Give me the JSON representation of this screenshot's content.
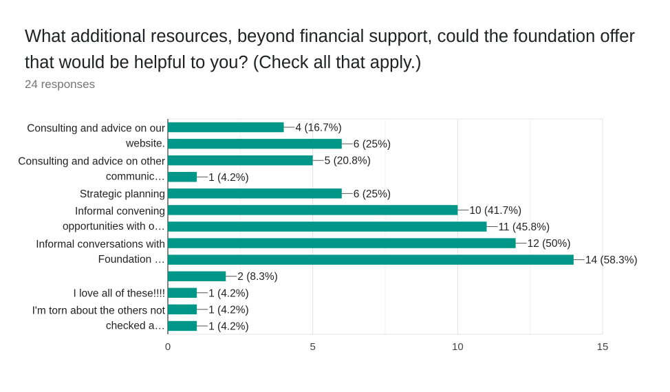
{
  "form": {
    "question": "What additional resources, beyond financial support, could the foundation offer that would be helpful to you? (Check all that apply.)",
    "responses": "24 responses"
  },
  "chart_data": {
    "type": "bar",
    "orientation": "horizontal",
    "title": "What additional resources, beyond financial support, could the foundation offer that would be helpful to you? (Check all that apply.)",
    "subtitle": "24 responses",
    "bars": [
      {
        "value": 4,
        "label": "4 (16.7%)"
      },
      {
        "value": 6,
        "label": "6 (25%)"
      },
      {
        "value": 5,
        "label": "5 (20.8%)"
      },
      {
        "value": 1,
        "label": "1 (4.2%)"
      },
      {
        "value": 6,
        "label": "6 (25%)"
      },
      {
        "value": 10,
        "label": "10 (41.7%)"
      },
      {
        "value": 11,
        "label": "11 (45.8%)"
      },
      {
        "value": 12,
        "label": "12 (50%)"
      },
      {
        "value": 14,
        "label": "14 (58.3%)"
      },
      {
        "value": 2,
        "label": "2 (8.3%)"
      },
      {
        "value": 1,
        "label": "1 (4.2%)"
      },
      {
        "value": 1,
        "label": "1 (4.2%)"
      },
      {
        "value": 1,
        "label": "1 (4.2%)"
      }
    ],
    "category_labels": [
      {
        "bar_index": 0.5,
        "lines": [
          "Consulting and advice on our",
          "website."
        ]
      },
      {
        "bar_index": 2.5,
        "lines": [
          "Consulting and advice on other",
          "communic…"
        ]
      },
      {
        "bar_index": 4,
        "lines": [
          "Strategic planning"
        ]
      },
      {
        "bar_index": 5.5,
        "lines": [
          "Informal convening",
          "opportunities with o…"
        ]
      },
      {
        "bar_index": 7.5,
        "lines": [
          "Informal conversations with",
          "Foundation …"
        ]
      },
      {
        "bar_index": 10,
        "lines": [
          "I love all of these!!!!"
        ]
      },
      {
        "bar_index": 11.5,
        "lines": [
          "I'm torn about the others not",
          "checked a…"
        ]
      }
    ],
    "x_ticks": [
      0,
      5,
      10,
      15
    ],
    "xlim": [
      0,
      15
    ],
    "grid": true,
    "legend": "none",
    "bar_color": "#009688"
  }
}
